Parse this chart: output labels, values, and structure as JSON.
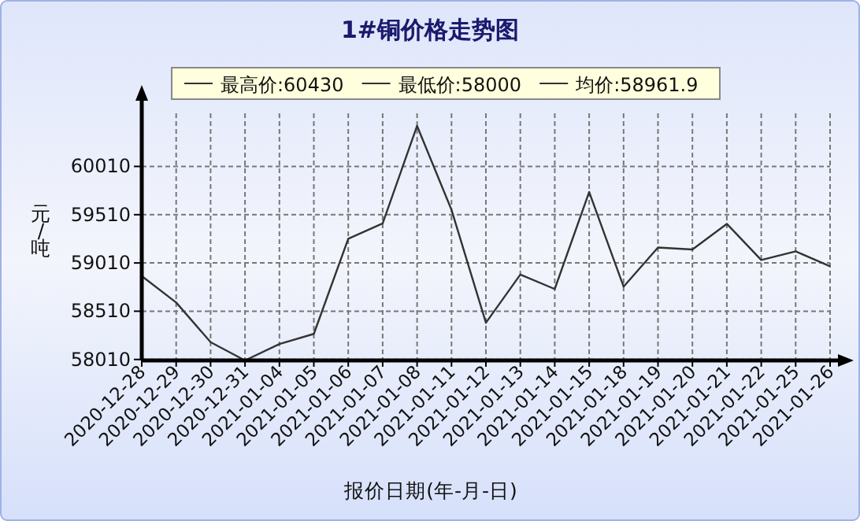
{
  "chart_data": {
    "type": "line",
    "title": "1#铜价格走势图",
    "xlabel": "报价日期(年-月-日)",
    "ylabel": "元/吨",
    "annotations": [
      "最高价:60430",
      "最低价:58000",
      "均价:58961.9"
    ],
    "categories": [
      "2020-12-28",
      "2020-12-29",
      "2020-12-30",
      "2020-12-31",
      "2021-01-04",
      "2021-01-05",
      "2021-01-06",
      "2021-01-07",
      "2021-01-08",
      "2021-01-11",
      "2021-01-12",
      "2021-01-13",
      "2021-01-14",
      "2021-01-15",
      "2021-01-18",
      "2021-01-19",
      "2021-01-20",
      "2021-01-21",
      "2021-01-22",
      "2021-01-25",
      "2021-01-26"
    ],
    "series": [
      {
        "color": "#333333",
        "values": [
          58875,
          58600,
          58190,
          58000,
          58170,
          58275,
          59260,
          59420,
          60430,
          59560,
          58390,
          58890,
          58740,
          59745,
          58765,
          59170,
          59150,
          59415,
          59040,
          59130,
          58975
        ]
      }
    ],
    "ylim": [
      58000,
      60560
    ],
    "yticks": [
      58010,
      58510,
      59010,
      59510,
      60010
    ],
    "grid": true,
    "marker": "none",
    "line_style": "solid"
  }
}
